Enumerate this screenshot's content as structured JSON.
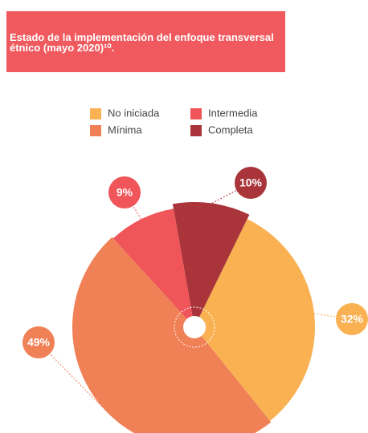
{
  "chart_data": {
    "type": "pie",
    "title": "Estado de la implementación del enfoque transversal étnico (mayo 2020)¹⁰.",
    "categories": [
      "No iniciada",
      "Mínima",
      "Intermedia",
      "Completa"
    ],
    "values": [
      32,
      49,
      9,
      10
    ],
    "value_labels": [
      "32%",
      "49%",
      "9%",
      "10%"
    ],
    "colors": [
      "#f9b152",
      "#f08056",
      "#ef5559",
      "#a9353b"
    ],
    "legend": "top"
  }
}
